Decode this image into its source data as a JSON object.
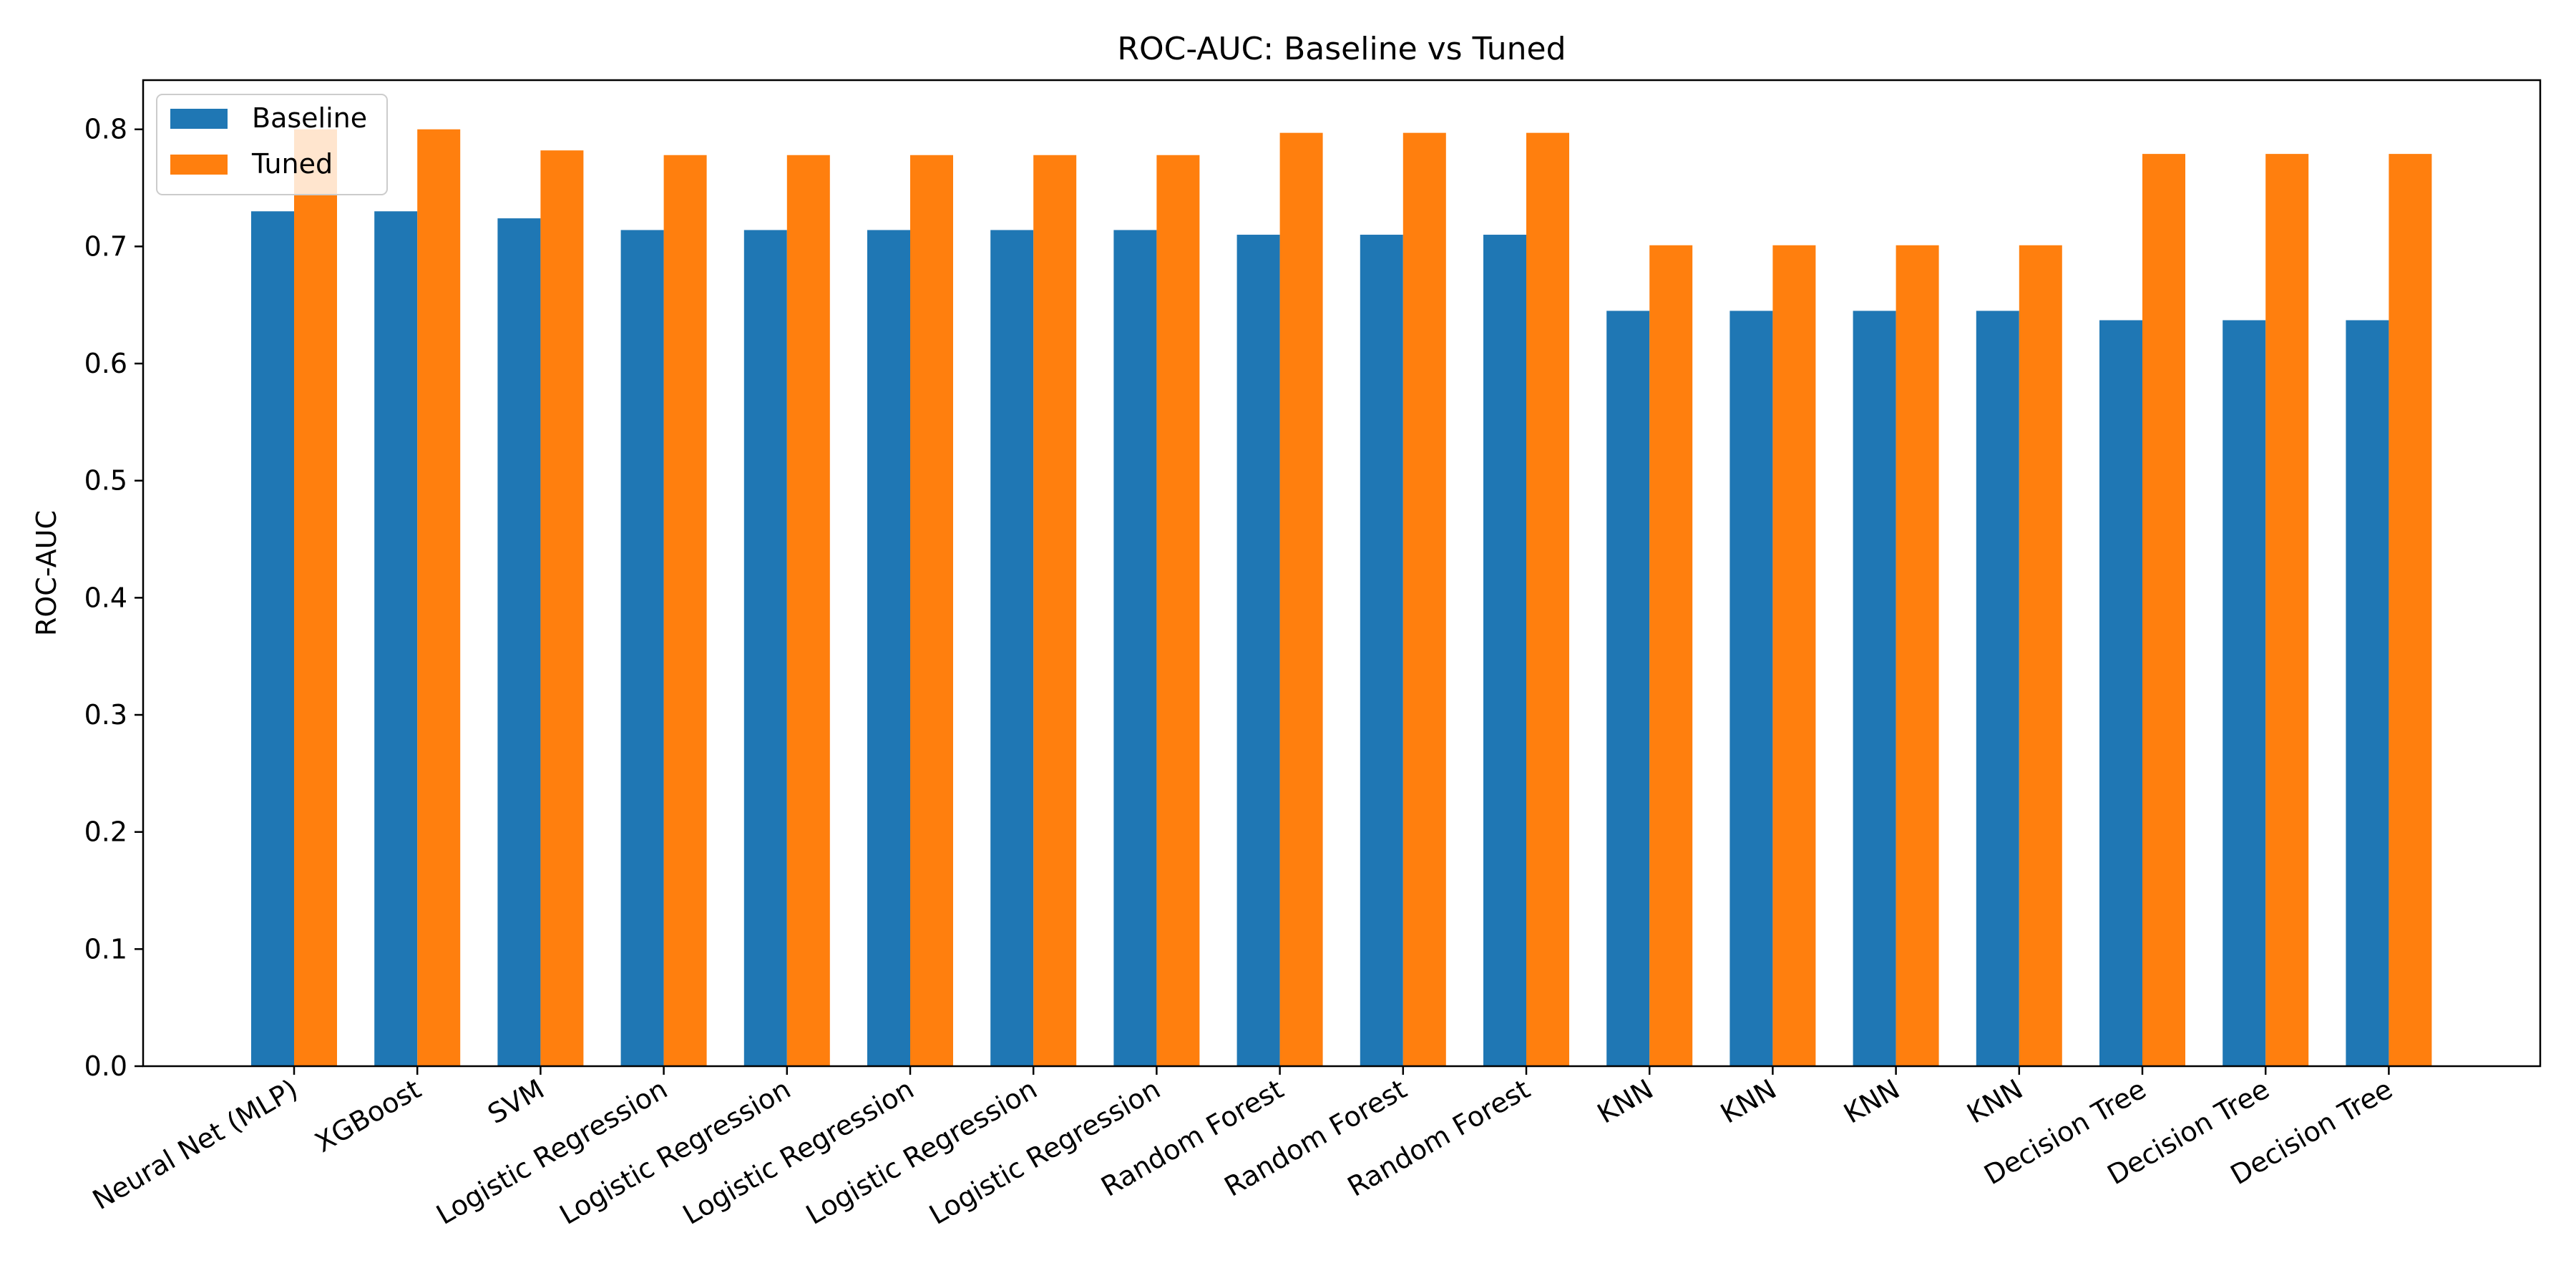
{
  "chart_data": {
    "type": "bar",
    "title": "ROC-AUC: Baseline vs Tuned",
    "xlabel": "",
    "ylabel": "ROC-AUC",
    "ylim": [
      0,
      0.842
    ],
    "yticks": [
      0.0,
      0.1,
      0.2,
      0.3,
      0.4,
      0.5,
      0.6,
      0.7,
      0.8
    ],
    "ytick_labels": [
      "0.0",
      "0.1",
      "0.2",
      "0.3",
      "0.4",
      "0.5",
      "0.6",
      "0.7",
      "0.8"
    ],
    "categories": [
      "Neural Net (MLP)",
      "XGBoost",
      "SVM",
      "Logistic Regression",
      "Logistic Regression",
      "Logistic Regression",
      "Logistic Regression",
      "Logistic Regression",
      "Random Forest",
      "Random Forest",
      "Random Forest",
      "KNN",
      "KNN",
      "KNN",
      "KNN",
      "Decision Tree",
      "Decision Tree",
      "Decision Tree"
    ],
    "series": [
      {
        "name": "Baseline",
        "color": "#1f77b4",
        "values": [
          0.73,
          0.73,
          0.724,
          0.714,
          0.714,
          0.714,
          0.714,
          0.714,
          0.71,
          0.71,
          0.71,
          0.645,
          0.645,
          0.645,
          0.645,
          0.637,
          0.637,
          0.637
        ]
      },
      {
        "name": "Tuned",
        "color": "#ff7f0e",
        "values": [
          0.8,
          0.8,
          0.782,
          0.778,
          0.778,
          0.778,
          0.778,
          0.778,
          0.797,
          0.797,
          0.797,
          0.701,
          0.701,
          0.701,
          0.701,
          0.779,
          0.779,
          0.779
        ]
      }
    ],
    "legend": {
      "position": "top-left",
      "entries": [
        "Baseline",
        "Tuned"
      ]
    },
    "grid": false
  }
}
